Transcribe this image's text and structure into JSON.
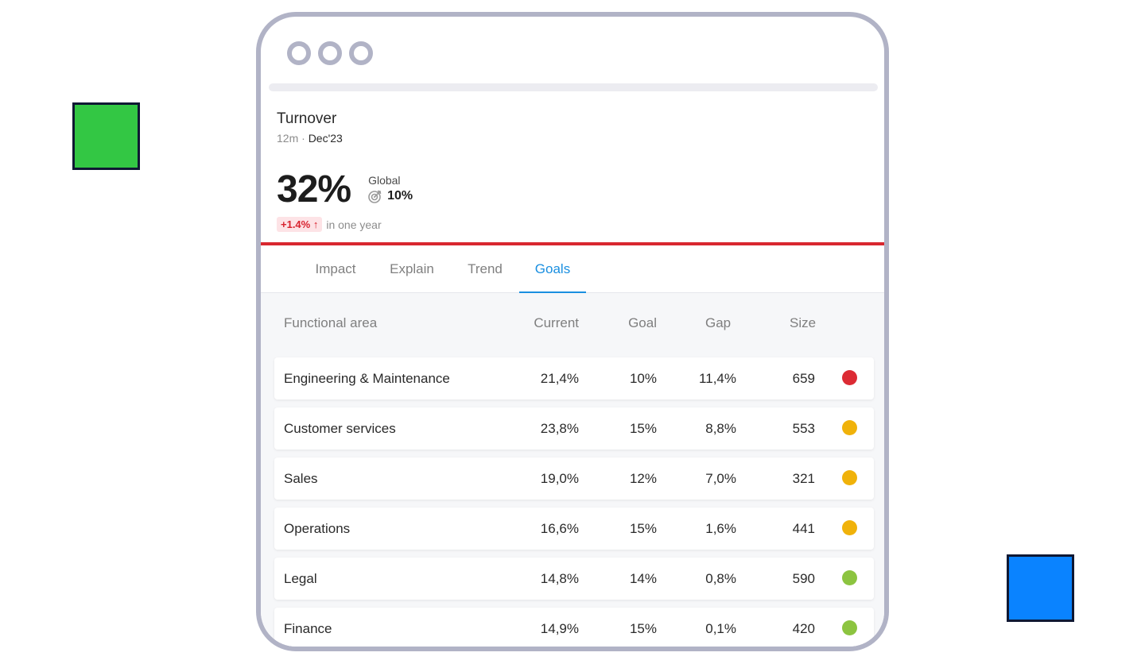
{
  "kpi": {
    "title": "Turnover",
    "period": "12m",
    "separator": " · ",
    "date": "Dec'23",
    "value": "32%",
    "global_label": "Global",
    "goal": "10%",
    "change": "+1.4% ↑",
    "change_note": "in one year"
  },
  "tabs": [
    {
      "label": "Impact",
      "active": false
    },
    {
      "label": "Explain",
      "active": false
    },
    {
      "label": "Trend",
      "active": false
    },
    {
      "label": "Goals",
      "active": true
    }
  ],
  "table": {
    "headers": [
      "Functional area",
      "Current",
      "Goal",
      "Gap",
      "Size"
    ],
    "rows": [
      {
        "area": "Engineering & Maintenance",
        "current": "21,4%",
        "goal": "10%",
        "gap": "11,4%",
        "size": "659",
        "status": "#dc2b34"
      },
      {
        "area": "Customer services",
        "current": "23,8%",
        "goal": "15%",
        "gap": "8,8%",
        "size": "553",
        "status": "#f0b20a"
      },
      {
        "area": "Sales",
        "current": "19,0%",
        "goal": "12%",
        "gap": "7,0%",
        "size": "321",
        "status": "#f0b20a"
      },
      {
        "area": "Operations",
        "current": "16,6%",
        "goal": "15%",
        "gap": "1,6%",
        "size": "441",
        "status": "#f0b20a"
      },
      {
        "area": "Legal",
        "current": "14,8%",
        "goal": "14%",
        "gap": "0,8%",
        "size": "590",
        "status": "#8cc440"
      },
      {
        "area": "Finance",
        "current": "14,9%",
        "goal": "15%",
        "gap": "0,1%",
        "size": "420",
        "status": "#8cc440"
      }
    ]
  },
  "colors": {
    "accent": "#1a8fe0",
    "alert": "#d8272f",
    "deco_green": "#33c744",
    "deco_blue": "#0a83ff"
  }
}
